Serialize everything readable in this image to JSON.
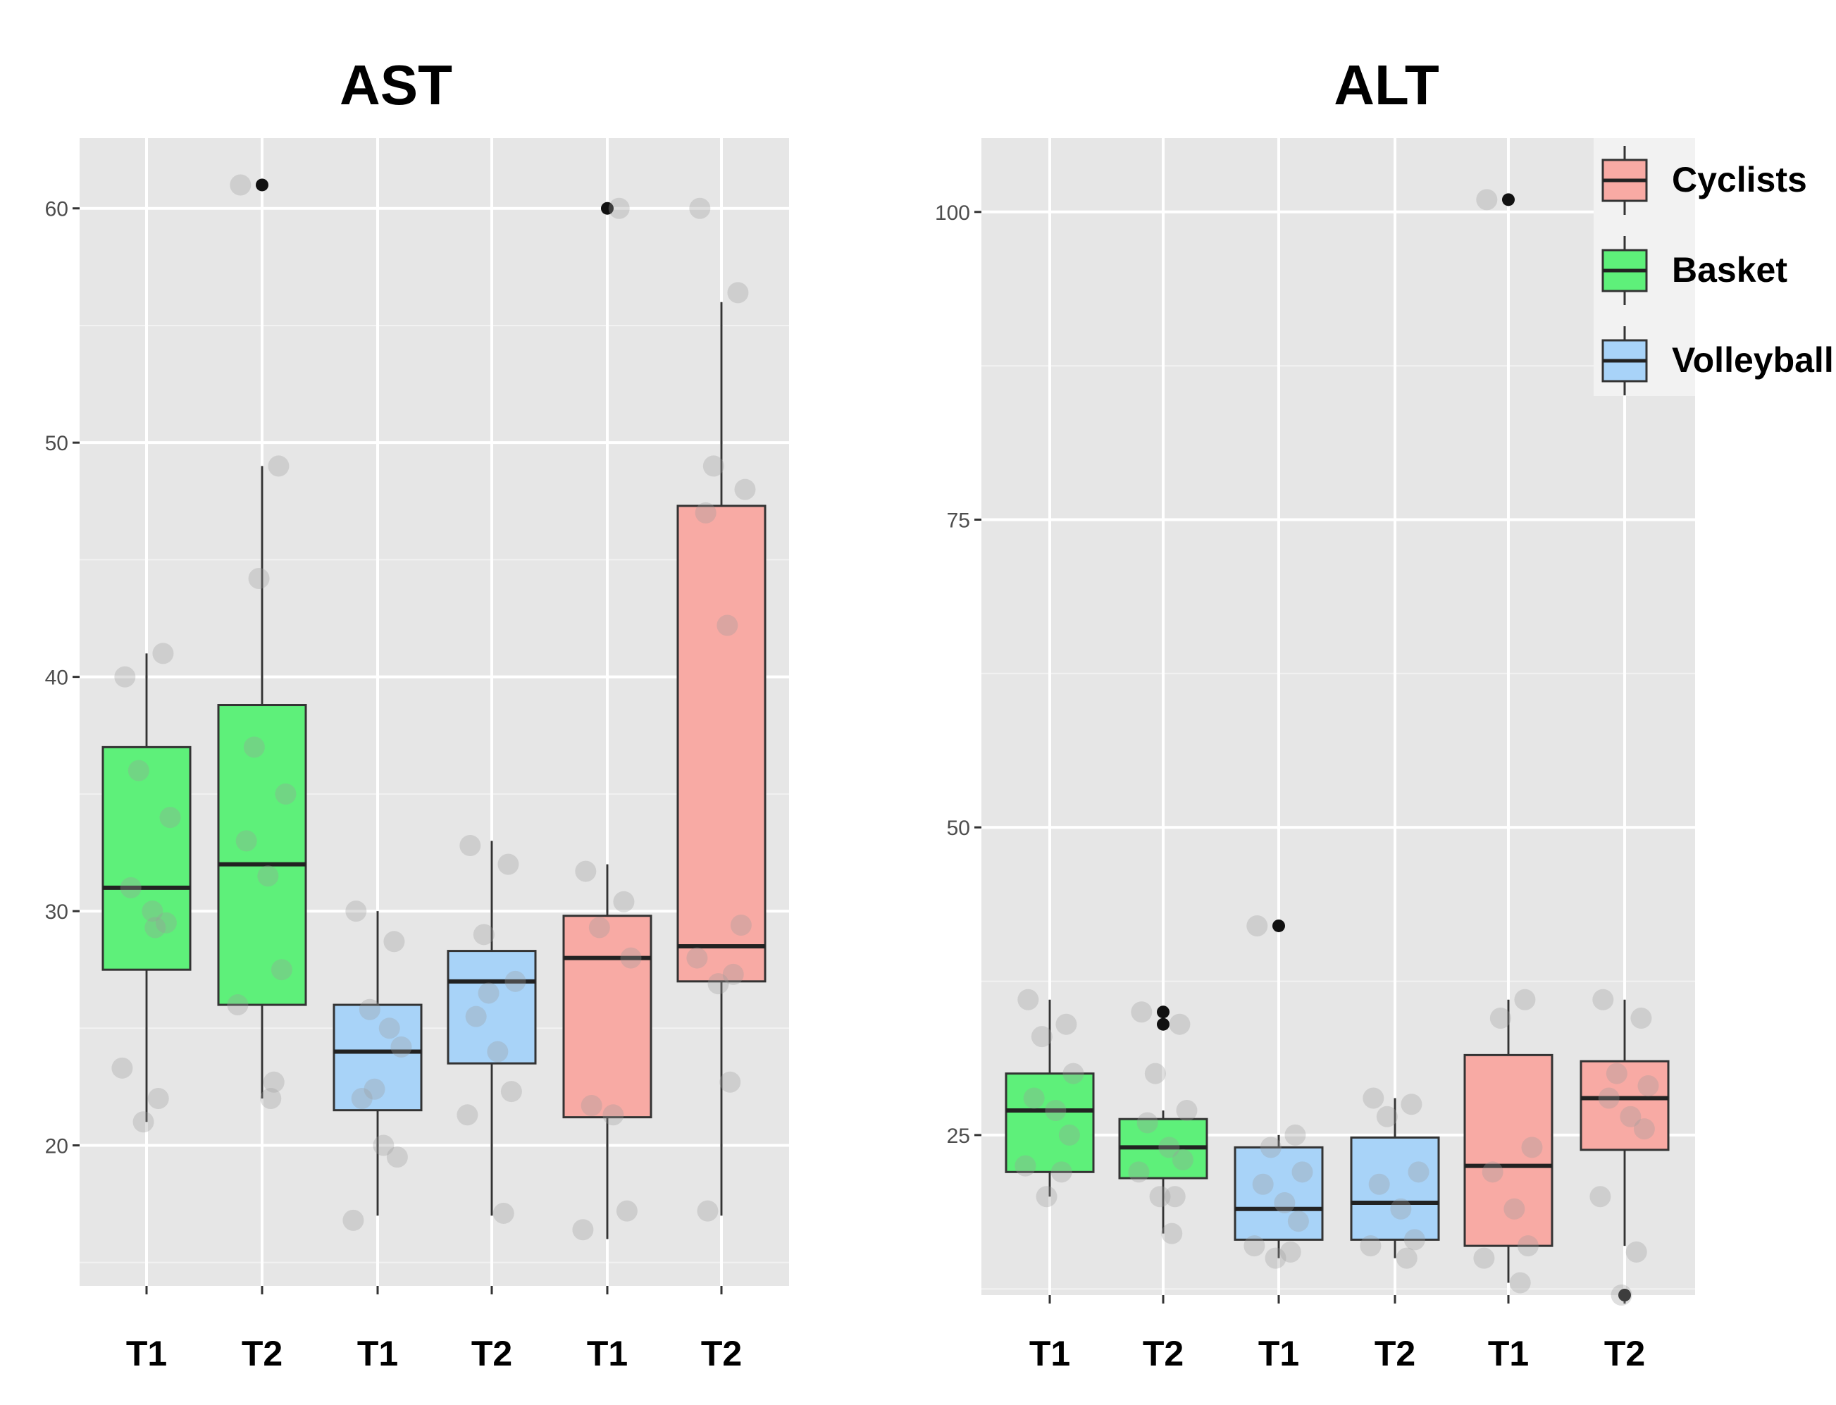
{
  "chart_data": [
    {
      "type": "boxplot",
      "title": "AST",
      "ylim": [
        14,
        63
      ],
      "yticks": [
        20,
        30,
        40,
        50,
        60
      ],
      "categories": [
        "T1",
        "T2",
        "T1",
        "T2",
        "T1",
        "T2"
      ],
      "groups": [
        "Basket",
        "Basket",
        "Volleyball",
        "Volleyball",
        "Cyclists",
        "Cyclists"
      ],
      "boxes": [
        {
          "group": "Basket",
          "label": "T1",
          "min": 21,
          "q1": 27.5,
          "median": 31,
          "q3": 37,
          "max": 41,
          "outliers": []
        },
        {
          "group": "Basket",
          "label": "T2",
          "min": 22,
          "q1": 26,
          "median": 32,
          "q3": 38.8,
          "max": 49,
          "outliers": [
            61
          ]
        },
        {
          "group": "Volleyball",
          "label": "T1",
          "min": 17,
          "q1": 21.5,
          "median": 24,
          "q3": 26,
          "max": 30,
          "outliers": []
        },
        {
          "group": "Volleyball",
          "label": "T2",
          "min": 17,
          "q1": 23.5,
          "median": 27,
          "q3": 28.3,
          "max": 33,
          "outliers": []
        },
        {
          "group": "Cyclists",
          "label": "T1",
          "min": 16,
          "q1": 21.2,
          "median": 28,
          "q3": 29.8,
          "max": 32,
          "outliers": [
            60
          ]
        },
        {
          "group": "Cyclists",
          "label": "T2",
          "min": 17,
          "q1": 27,
          "median": 28.5,
          "q3": 47.3,
          "max": 56,
          "outliers": []
        }
      ],
      "points": [
        [
          40,
          41,
          36,
          34,
          31,
          30,
          29.5,
          23.3,
          22,
          21,
          29.3
        ],
        [
          61,
          49,
          37,
          35,
          33,
          31.5,
          27.5,
          26,
          22.7,
          44.2,
          22
        ],
        [
          30,
          28.7,
          25.8,
          24.2,
          22,
          20,
          19.5,
          16.8,
          25,
          22.4
        ],
        [
          32.8,
          32,
          29,
          27,
          25.5,
          24,
          22.3,
          21.3,
          17.1,
          26.5
        ],
        [
          31.7,
          30.4,
          29.3,
          28,
          21.7,
          21.3,
          17.2,
          16.4,
          60
        ],
        [
          60,
          56.4,
          49,
          48,
          47,
          42.2,
          29.4,
          28,
          27.3,
          26.9,
          22.7,
          17.2
        ]
      ]
    },
    {
      "type": "boxplot",
      "title": "ALT",
      "ylim": [
        12,
        106
      ],
      "yticks": [
        25,
        50,
        75,
        100
      ],
      "categories": [
        "T1",
        "T2",
        "T1",
        "T2",
        "T1",
        "T2"
      ],
      "groups": [
        "Basket",
        "Basket",
        "Volleyball",
        "Volleyball",
        "Cyclists",
        "Cyclists"
      ],
      "boxes": [
        {
          "group": "Basket",
          "label": "T1",
          "min": 20,
          "q1": 22,
          "median": 27,
          "q3": 30,
          "max": 36,
          "outliers": []
        },
        {
          "group": "Basket",
          "label": "T2",
          "min": 17,
          "q1": 21.5,
          "median": 24,
          "q3": 26.3,
          "max": 27,
          "outliers": [
            35,
            34
          ]
        },
        {
          "group": "Volleyball",
          "label": "T1",
          "min": 15,
          "q1": 16.5,
          "median": 19,
          "q3": 24,
          "max": 25,
          "outliers": [
            42
          ]
        },
        {
          "group": "Volleyball",
          "label": "T2",
          "min": 15,
          "q1": 16.5,
          "median": 19.5,
          "q3": 24.8,
          "max": 28,
          "outliers": []
        },
        {
          "group": "Cyclists",
          "label": "T1",
          "min": 13,
          "q1": 16,
          "median": 22.5,
          "q3": 31.5,
          "max": 36,
          "outliers": [
            101
          ]
        },
        {
          "group": "Cyclists",
          "label": "T2",
          "min": 16,
          "q1": 23.8,
          "median": 28,
          "q3": 31,
          "max": 36,
          "outliers": [
            12
          ]
        }
      ],
      "points": [
        [
          36,
          34,
          33,
          30,
          28,
          27,
          25,
          22.5,
          22,
          20
        ],
        [
          35,
          34,
          30,
          27,
          26,
          24,
          23,
          22,
          20,
          20,
          17
        ],
        [
          42,
          25,
          24,
          22,
          21,
          19.5,
          18,
          16,
          15.5,
          15
        ],
        [
          28,
          27.5,
          26.5,
          22,
          21,
          19,
          16.5,
          16,
          15
        ],
        [
          101,
          36,
          34.5,
          24,
          22,
          19,
          16,
          15,
          13
        ],
        [
          36,
          34.5,
          30,
          29,
          28,
          26.5,
          25.5,
          20,
          15.5,
          12
        ]
      ]
    }
  ],
  "legend": [
    {
      "label": "Cyclists",
      "color": "#f8aaa4"
    },
    {
      "label": "Basket",
      "color": "#5ef07a"
    },
    {
      "label": "Volleyball",
      "color": "#a8d3f8"
    }
  ]
}
